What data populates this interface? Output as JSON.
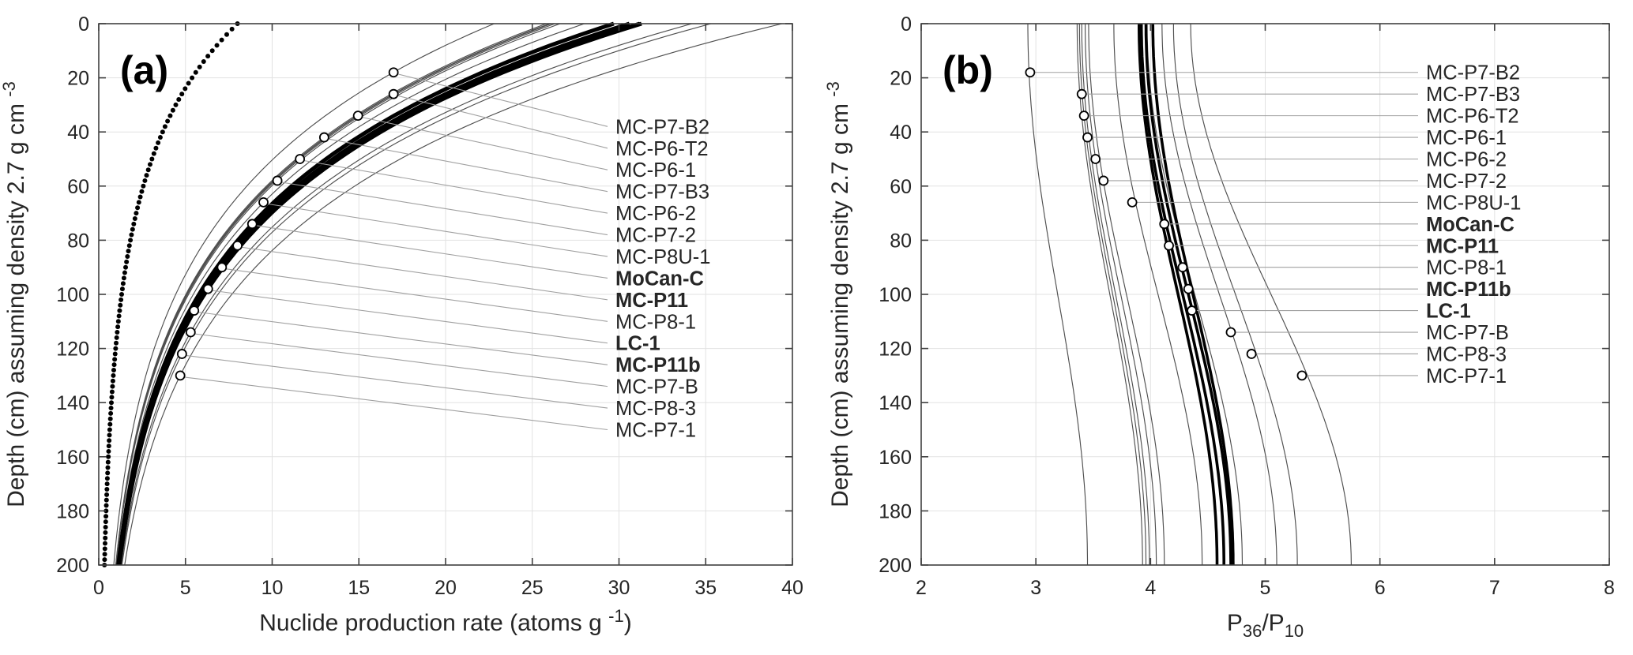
{
  "page": {
    "background": "#ffffff"
  },
  "colors": {
    "frame": "#404040",
    "grid": "#e2e2e2",
    "curve_gray": "#4f4f4f",
    "curve_black": "#000000",
    "leader": "#a0a0a0",
    "marker_stroke": "#000000",
    "marker_fill": "#ffffff",
    "text": "#262626"
  },
  "chart_data": [
    {
      "panel": "a",
      "type": "line",
      "tag": "(a)",
      "xlabel": "Nuclide production rate (atoms g -1)",
      "xlabel_parts": [
        {
          "text": "Nuclide production rate (atoms g ",
          "script": "normal"
        },
        {
          "text": "-1",
          "script": "sup"
        },
        {
          "text": ")",
          "script": "normal"
        }
      ],
      "ylabel": "Depth (cm) assuming density 2.7 g cm -3",
      "ylabel_parts": [
        {
          "text": "Depth (cm) assuming density 2.7 g cm ",
          "script": "normal"
        },
        {
          "text": "-3",
          "script": "sup"
        }
      ],
      "xlim": [
        0,
        40
      ],
      "ylim": [
        0,
        200
      ],
      "y_inverted": true,
      "grid": true,
      "xticks": [
        0,
        5,
        10,
        15,
        20,
        25,
        30,
        35,
        40
      ],
      "yticks": [
        0,
        20,
        40,
        60,
        80,
        100,
        120,
        140,
        160,
        180,
        200
      ],
      "curve_model": {
        "density_g_cm3": 2.7,
        "lambda_g_cm2": 165
      },
      "reference_curve": {
        "name": "surface-production-depth-curve",
        "style": "filled-dot-markers",
        "marker_step_cm": 2,
        "terms": [
          {
            "amplitude": 5.5,
            "lambda_g_cm2": 110
          },
          {
            "amplitude": 2.5,
            "lambda_g_cm2": 250
          }
        ]
      },
      "label_column": {
        "depth_start_cm": 38,
        "depth_step_cm": 8
      },
      "samples": [
        {
          "label": "MC-P7-B2",
          "bold": false,
          "depth_cm": 18,
          "value": 17.0,
          "curve_p0": 22.8
        },
        {
          "label": "MC-P6-T2",
          "bold": false,
          "depth_cm": 26,
          "value": 17.0,
          "curve_p0": 26.0
        },
        {
          "label": "MC-P6-1",
          "bold": false,
          "depth_cm": 34,
          "value": 14.95,
          "curve_p0": 26.1
        },
        {
          "label": "MC-P7-B3",
          "bold": false,
          "depth_cm": 42,
          "value": 13.0,
          "curve_p0": 25.8
        },
        {
          "label": "MC-P6-2",
          "bold": false,
          "depth_cm": 50,
          "value": 11.6,
          "curve_p0": 26.3
        },
        {
          "label": "MC-P7-2",
          "bold": false,
          "depth_cm": 58,
          "value": 10.3,
          "curve_p0": 26.6
        },
        {
          "label": "MC-P8U-1",
          "bold": false,
          "depth_cm": 66,
          "value": 9.5,
          "curve_p0": 28.0
        },
        {
          "label": "MoCan-C",
          "bold": true,
          "depth_cm": 74,
          "value": 8.85,
          "curve_p0": 29.7
        },
        {
          "label": "MC-P11",
          "bold": true,
          "depth_cm": 82,
          "value": 8.0,
          "curve_p0": 30.6
        },
        {
          "label": "MC-P8-1",
          "bold": false,
          "depth_cm": 90,
          "value": 7.1,
          "curve_p0": 31.0
        },
        {
          "label": "LC-1",
          "bold": true,
          "depth_cm": 98,
          "value": 6.3,
          "curve_p0": 31.3
        },
        {
          "label": "MC-P11b",
          "bold": true,
          "depth_cm": 106,
          "value": 5.5,
          "curve_p0": 31.2
        },
        {
          "label": "MC-P7-B",
          "bold": false,
          "depth_cm": 114,
          "value": 5.3,
          "curve_p0": 34.2
        },
        {
          "label": "MC-P8-3",
          "bold": false,
          "depth_cm": 122,
          "value": 4.8,
          "curve_p0": 35.3
        },
        {
          "label": "MC-P7-1",
          "bold": false,
          "depth_cm": 130,
          "value": 4.7,
          "curve_p0": 39.4
        }
      ]
    },
    {
      "panel": "b",
      "type": "line",
      "tag": "(b)",
      "xlabel": "P36/P10",
      "xlabel_parts": [
        {
          "text": "P",
          "script": "normal"
        },
        {
          "text": "36",
          "script": "sub"
        },
        {
          "text": "/P",
          "script": "normal"
        },
        {
          "text": "10",
          "script": "sub"
        }
      ],
      "ylabel": "Depth (cm) assuming density 2.7 g cm -3",
      "ylabel_parts": [
        {
          "text": "Depth (cm) assuming density 2.7 g cm ",
          "script": "normal"
        },
        {
          "text": "-3",
          "script": "sup"
        }
      ],
      "xlim": [
        2,
        8
      ],
      "ylim": [
        0,
        200
      ],
      "y_inverted": true,
      "grid": true,
      "xticks": [
        2,
        3,
        4,
        5,
        6,
        7,
        8
      ],
      "yticks": [
        0,
        20,
        40,
        60,
        80,
        100,
        120,
        140,
        160,
        180,
        200
      ],
      "curve_model": {
        "shape": "half-cosine-sigmoid"
      },
      "label_column": {
        "align_with_points": true
      },
      "samples": [
        {
          "label": "MC-P7-B2",
          "bold": false,
          "depth_cm": 18,
          "value": 2.95,
          "curve_v0": 2.93,
          "curve_v200": 3.45
        },
        {
          "label": "MC-P7-B3",
          "bold": false,
          "depth_cm": 26,
          "value": 3.4,
          "curve_v0": 3.36,
          "curve_v200": 3.93
        },
        {
          "label": "MC-P6-T2",
          "bold": false,
          "depth_cm": 34,
          "value": 3.42,
          "curve_v0": 3.38,
          "curve_v200": 3.96
        },
        {
          "label": "MC-P6-1",
          "bold": false,
          "depth_cm": 42,
          "value": 3.45,
          "curve_v0": 3.4,
          "curve_v200": 3.99
        },
        {
          "label": "MC-P6-2",
          "bold": false,
          "depth_cm": 50,
          "value": 3.52,
          "curve_v0": 3.43,
          "curve_v200": 4.05
        },
        {
          "label": "MC-P7-2",
          "bold": false,
          "depth_cm": 58,
          "value": 3.59,
          "curve_v0": 3.46,
          "curve_v200": 4.12
        },
        {
          "label": "MC-P8U-1",
          "bold": false,
          "depth_cm": 66,
          "value": 3.84,
          "curve_v0": 3.68,
          "curve_v200": 4.45
        },
        {
          "label": "MoCan-C",
          "bold": true,
          "depth_cm": 74,
          "value": 4.12,
          "curve_v0": 3.9,
          "curve_v200": 4.58
        },
        {
          "label": "MC-P11",
          "bold": true,
          "depth_cm": 82,
          "value": 4.16,
          "curve_v0": 3.92,
          "curve_v200": 4.64
        },
        {
          "label": "MC-P8-1",
          "bold": false,
          "depth_cm": 90,
          "value": 4.28,
          "curve_v0": 3.97,
          "curve_v200": 4.8
        },
        {
          "label": "MC-P11b",
          "bold": true,
          "depth_cm": 98,
          "value": 4.33,
          "curve_v0": 4.02,
          "curve_v200": 4.72
        },
        {
          "label": "LC-1",
          "bold": true,
          "depth_cm": 106,
          "value": 4.36,
          "curve_v0": 3.96,
          "curve_v200": 4.7
        },
        {
          "label": "MC-P7-B",
          "bold": false,
          "depth_cm": 114,
          "value": 4.7,
          "curve_v0": 4.1,
          "curve_v200": 5.1
        },
        {
          "label": "MC-P8-3",
          "bold": false,
          "depth_cm": 122,
          "value": 4.88,
          "curve_v0": 4.2,
          "curve_v200": 5.28
        },
        {
          "label": "MC-P7-1",
          "bold": false,
          "depth_cm": 130,
          "value": 5.32,
          "curve_v0": 4.35,
          "curve_v200": 5.75
        }
      ]
    }
  ]
}
